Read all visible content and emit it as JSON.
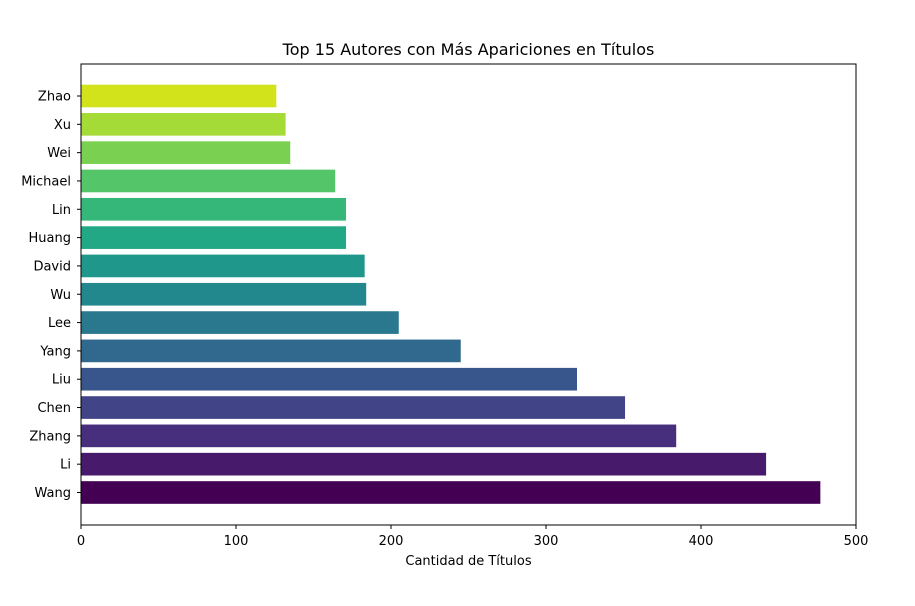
{
  "chart_data": {
    "type": "bar",
    "orientation": "horizontal",
    "title": "Top 15 Autores con Más Apariciones en Títulos",
    "xlabel": "Cantidad de Títulos",
    "ylabel": "",
    "xlim": [
      0,
      500
    ],
    "xticks": [
      "0",
      "100",
      "200",
      "300",
      "400",
      "500"
    ],
    "grid": false,
    "legend": "none",
    "categories": [
      "Wang",
      "Li",
      "Zhang",
      "Chen",
      "Liu",
      "Yang",
      "Lee",
      "Wu",
      "David",
      "Huang",
      "Lin",
      "Michael",
      "Wei",
      "Xu",
      "Zhao"
    ],
    "values": [
      477,
      442,
      384,
      351,
      320,
      245,
      205,
      184,
      183,
      171,
      171,
      164,
      135,
      132,
      126
    ],
    "colors": [
      "#440154",
      "#481a6c",
      "#472f7d",
      "#414487",
      "#39568c",
      "#31688e",
      "#2a788e",
      "#23888e",
      "#1f988b",
      "#22a884",
      "#35b779",
      "#54c568",
      "#7ad151",
      "#a5db36",
      "#d2e21b"
    ]
  }
}
